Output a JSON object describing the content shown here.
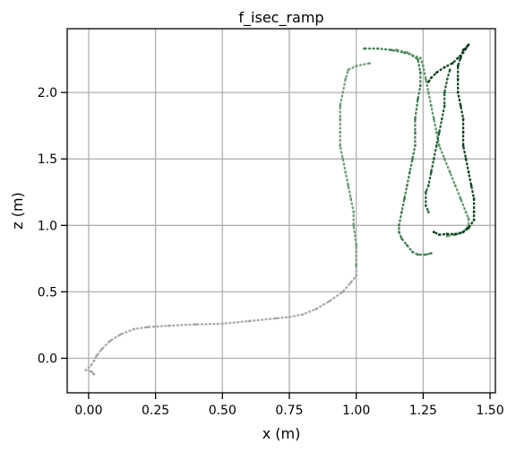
{
  "chart_data": {
    "type": "scatter",
    "title": "f_isec_ramp",
    "xlabel": "x (m)",
    "ylabel": "z (m)",
    "xlim": [
      -0.08,
      1.52
    ],
    "ylim": [
      -0.26,
      2.48
    ],
    "xticks": [
      0.0,
      0.25,
      0.5,
      0.75,
      1.0,
      1.25,
      1.5
    ],
    "xtick_labels": [
      "0.00",
      "0.25",
      "0.50",
      "0.75",
      "1.00",
      "1.25",
      "1.50"
    ],
    "yticks": [
      0.0,
      0.5,
      1.0,
      1.5,
      2.0
    ],
    "ytick_labels": [
      "0.0",
      "0.5",
      "1.0",
      "1.5",
      "2.0"
    ],
    "grid": true,
    "legend": "none",
    "series": [
      {
        "color": "#a7a7a7",
        "points": [
          [
            0.02,
            -0.12
          ],
          [
            0.01,
            -0.1
          ],
          [
            -0.01,
            -0.09
          ],
          [
            0.01,
            -0.05
          ],
          [
            0.02,
            -0.02
          ],
          [
            0.03,
            0.02
          ],
          [
            0.05,
            0.07
          ],
          [
            0.08,
            0.13
          ],
          [
            0.12,
            0.18
          ],
          [
            0.17,
            0.22
          ],
          [
            0.22,
            0.235
          ],
          [
            0.3,
            0.245
          ],
          [
            0.4,
            0.255
          ],
          [
            0.5,
            0.26
          ],
          [
            0.6,
            0.28
          ],
          [
            0.7,
            0.3
          ],
          [
            0.75,
            0.31
          ],
          [
            0.8,
            0.33
          ],
          [
            0.85,
            0.37
          ],
          [
            0.9,
            0.43
          ],
          [
            0.95,
            0.5
          ],
          [
            0.98,
            0.57
          ],
          [
            1.0,
            0.62
          ],
          [
            1.0,
            0.7
          ]
        ]
      },
      {
        "color": "#6f9a76",
        "points": [
          [
            1.0,
            0.7
          ],
          [
            1.0,
            0.85
          ],
          [
            0.99,
            1.0
          ],
          [
            0.99,
            1.1
          ],
          [
            0.98,
            1.2
          ],
          [
            0.97,
            1.3
          ],
          [
            0.96,
            1.4
          ],
          [
            0.95,
            1.5
          ],
          [
            0.94,
            1.6
          ],
          [
            0.94,
            1.7
          ],
          [
            0.94,
            1.8
          ],
          [
            0.94,
            1.9
          ],
          [
            0.95,
            2.0
          ],
          [
            0.96,
            2.1
          ],
          [
            0.97,
            2.17
          ],
          [
            1.0,
            2.2
          ],
          [
            1.05,
            2.22
          ]
        ]
      },
      {
        "color": "#3f7d4c",
        "points": [
          [
            1.03,
            2.33
          ],
          [
            1.08,
            2.33
          ],
          [
            1.13,
            2.32
          ],
          [
            1.18,
            2.3
          ],
          [
            1.2,
            2.29
          ],
          [
            1.23,
            2.25
          ],
          [
            1.24,
            2.15
          ],
          [
            1.24,
            2.05
          ],
          [
            1.23,
            1.95
          ],
          [
            1.22,
            1.8
          ],
          [
            1.22,
            1.7
          ],
          [
            1.22,
            1.6
          ],
          [
            1.21,
            1.5
          ],
          [
            1.2,
            1.4
          ],
          [
            1.19,
            1.3
          ],
          [
            1.18,
            1.2
          ],
          [
            1.17,
            1.1
          ],
          [
            1.16,
            1.0
          ],
          [
            1.16,
            0.95
          ],
          [
            1.17,
            0.9
          ],
          [
            1.19,
            0.85
          ],
          [
            1.21,
            0.8
          ],
          [
            1.23,
            0.78
          ],
          [
            1.26,
            0.78
          ],
          [
            1.28,
            0.79
          ]
        ]
      },
      {
        "color": "#5e9468",
        "points": [
          [
            1.15,
            2.32
          ],
          [
            1.19,
            2.3
          ],
          [
            1.21,
            2.28
          ],
          [
            1.24,
            2.26
          ],
          [
            1.25,
            2.2
          ],
          [
            1.26,
            2.1
          ],
          [
            1.27,
            2.0
          ],
          [
            1.28,
            1.9
          ],
          [
            1.29,
            1.8
          ],
          [
            1.3,
            1.7
          ],
          [
            1.31,
            1.6
          ],
          [
            1.33,
            1.5
          ],
          [
            1.35,
            1.4
          ],
          [
            1.37,
            1.3
          ],
          [
            1.39,
            1.2
          ],
          [
            1.41,
            1.1
          ],
          [
            1.42,
            1.05
          ],
          [
            1.42,
            1.0
          ],
          [
            1.41,
            0.97
          ],
          [
            1.39,
            0.94
          ],
          [
            1.37,
            0.93
          ],
          [
            1.34,
            0.92
          ]
        ]
      },
      {
        "color": "#1f5f33",
        "points": [
          [
            1.35,
            2.17
          ],
          [
            1.34,
            2.1
          ],
          [
            1.33,
            2.0
          ],
          [
            1.33,
            1.9
          ],
          [
            1.32,
            1.8
          ],
          [
            1.31,
            1.7
          ],
          [
            1.3,
            1.6
          ],
          [
            1.29,
            1.5
          ],
          [
            1.28,
            1.4
          ],
          [
            1.27,
            1.3
          ],
          [
            1.26,
            1.25
          ],
          [
            1.26,
            1.15
          ],
          [
            1.27,
            1.1
          ]
        ]
      },
      {
        "color": "#0d3d1f",
        "points": [
          [
            1.27,
            2.08
          ],
          [
            1.28,
            2.11
          ],
          [
            1.3,
            2.15
          ],
          [
            1.33,
            2.19
          ],
          [
            1.36,
            2.22
          ],
          [
            1.38,
            2.26
          ],
          [
            1.4,
            2.3
          ],
          [
            1.41,
            2.33
          ],
          [
            1.42,
            2.36
          ],
          [
            1.4,
            2.32
          ],
          [
            1.39,
            2.26
          ],
          [
            1.38,
            2.2
          ],
          [
            1.38,
            2.1
          ],
          [
            1.38,
            2.0
          ],
          [
            1.39,
            1.9
          ],
          [
            1.4,
            1.8
          ],
          [
            1.4,
            1.7
          ],
          [
            1.4,
            1.6
          ],
          [
            1.41,
            1.5
          ],
          [
            1.42,
            1.4
          ],
          [
            1.43,
            1.3
          ],
          [
            1.44,
            1.2
          ],
          [
            1.44,
            1.1
          ],
          [
            1.44,
            1.04
          ],
          [
            1.42,
            0.98
          ],
          [
            1.4,
            0.95
          ],
          [
            1.37,
            0.935
          ],
          [
            1.34,
            0.935
          ],
          [
            1.31,
            0.93
          ],
          [
            1.29,
            0.95
          ]
        ]
      }
    ]
  }
}
